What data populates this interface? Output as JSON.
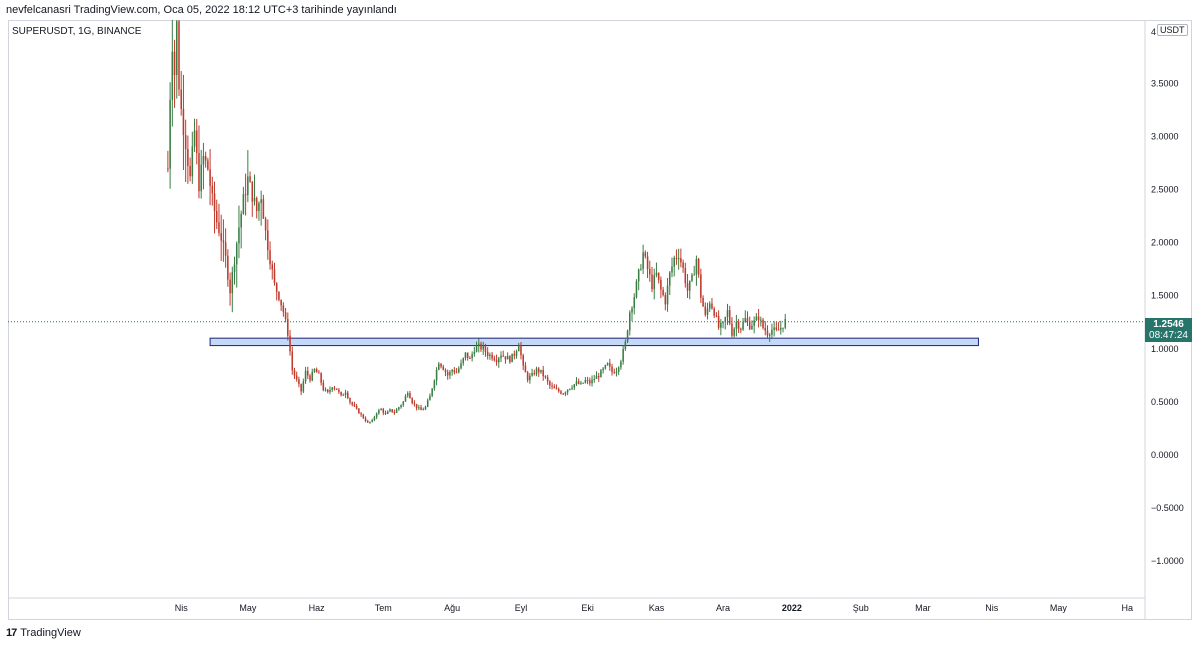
{
  "header": {
    "text": "nevfelcanasri TradingView.com, Oca 05, 2022 18:12 UTC+3 tarihinde yayınlandı"
  },
  "symbol": {
    "text": "SUPERUSDT, 1G, BINANCE"
  },
  "currency": "USDT",
  "last_price": {
    "price": "1.2546",
    "countdown": "08:47:24"
  },
  "footer": {
    "logo": "17",
    "brand": "TradingView"
  },
  "colors": {
    "up": "#26a69a",
    "down": "#ef5350",
    "candle_body_up": "#3a7d44",
    "candle_body_down": "#c0392b",
    "zone_fill": "#c5d8f7",
    "zone_stroke": "#1a237e",
    "last_price_bg": "#26746a"
  },
  "chart_data": {
    "type": "candlestick",
    "title": "",
    "xlabel": "",
    "ylabel": "",
    "ylim": [
      -1.35,
      4.1
    ],
    "y_ticks": [
      "3.5000",
      "3.0000",
      "2.5000",
      "2.0000",
      "1.5000",
      "1.0000",
      "0.5000",
      "0.0000",
      "−0.5000",
      "−1.0000"
    ],
    "y_tick_values": [
      3.5,
      3.0,
      2.5,
      2.0,
      1.5,
      1.0,
      0.5,
      0.0,
      -0.5,
      -1.0
    ],
    "y_top_tick": "4",
    "x_ticks": [
      "Nis",
      "May",
      "Haz",
      "Tem",
      "Ağu",
      "Eyl",
      "Eki",
      "Kas",
      "Ara",
      "2022",
      "Şub",
      "Mar",
      "Nis",
      "May",
      "Ha"
    ],
    "x_tick_days": [
      0,
      30,
      61,
      91,
      122,
      153,
      183,
      214,
      244,
      275,
      306,
      334,
      365,
      395,
      426
    ],
    "x_range_days": [
      -78,
      434
    ],
    "grid": false,
    "legend": "none",
    "last_price": 1.2546,
    "support_zone": {
      "y_low": 1.03,
      "y_high": 1.1,
      "x_start_day": 13,
      "x_end_day": 359
    },
    "close_path": [
      [
        -6,
        2.7
      ],
      [
        -5,
        3.4
      ],
      [
        -4,
        3.9
      ],
      [
        -3,
        3.6
      ],
      [
        -2,
        4.05
      ],
      [
        -1,
        3.5
      ],
      [
        0,
        3.25
      ],
      [
        2,
        2.95
      ],
      [
        4,
        2.6
      ],
      [
        6,
        3.05
      ],
      [
        8,
        2.55
      ],
      [
        10,
        2.8
      ],
      [
        12,
        2.7
      ],
      [
        14,
        2.4
      ],
      [
        16,
        2.2
      ],
      [
        18,
        2.05
      ],
      [
        20,
        1.85
      ],
      [
        22,
        1.55
      ],
      [
        24,
        1.85
      ],
      [
        26,
        2.15
      ],
      [
        28,
        2.4
      ],
      [
        30,
        2.6
      ],
      [
        32,
        2.45
      ],
      [
        34,
        2.3
      ],
      [
        36,
        2.45
      ],
      [
        38,
        2.1
      ],
      [
        40,
        1.85
      ],
      [
        42,
        1.6
      ],
      [
        44,
        1.5
      ],
      [
        46,
        1.35
      ],
      [
        48,
        1.15
      ],
      [
        50,
        0.8
      ],
      [
        52,
        0.7
      ],
      [
        54,
        0.6
      ],
      [
        56,
        0.78
      ],
      [
        58,
        0.72
      ],
      [
        60,
        0.8
      ],
      [
        62,
        0.75
      ],
      [
        64,
        0.62
      ],
      [
        66,
        0.58
      ],
      [
        68,
        0.65
      ],
      [
        70,
        0.62
      ],
      [
        72,
        0.55
      ],
      [
        74,
        0.6
      ],
      [
        76,
        0.5
      ],
      [
        78,
        0.45
      ],
      [
        80,
        0.4
      ],
      [
        82,
        0.35
      ],
      [
        84,
        0.3
      ],
      [
        86,
        0.32
      ],
      [
        88,
        0.4
      ],
      [
        90,
        0.43
      ],
      [
        92,
        0.38
      ],
      [
        94,
        0.42
      ],
      [
        96,
        0.4
      ],
      [
        98,
        0.45
      ],
      [
        100,
        0.5
      ],
      [
        102,
        0.6
      ],
      [
        104,
        0.5
      ],
      [
        106,
        0.45
      ],
      [
        108,
        0.42
      ],
      [
        110,
        0.45
      ],
      [
        112,
        0.55
      ],
      [
        114,
        0.72
      ],
      [
        116,
        0.88
      ],
      [
        118,
        0.82
      ],
      [
        120,
        0.75
      ],
      [
        122,
        0.8
      ],
      [
        124,
        0.78
      ],
      [
        126,
        0.85
      ],
      [
        128,
        0.95
      ],
      [
        130,
        0.9
      ],
      [
        132,
        1.0
      ],
      [
        134,
        1.02
      ],
      [
        136,
        1.0
      ],
      [
        138,
        0.95
      ],
      [
        140,
        0.93
      ],
      [
        142,
        0.9
      ],
      [
        144,
        0.95
      ],
      [
        146,
        0.92
      ],
      [
        148,
        0.9
      ],
      [
        150,
        0.95
      ],
      [
        152,
        1.05
      ],
      [
        154,
        0.82
      ],
      [
        156,
        0.72
      ],
      [
        158,
        0.75
      ],
      [
        160,
        0.8
      ],
      [
        162,
        0.78
      ],
      [
        164,
        0.72
      ],
      [
        166,
        0.65
      ],
      [
        168,
        0.62
      ],
      [
        170,
        0.6
      ],
      [
        172,
        0.58
      ],
      [
        174,
        0.62
      ],
      [
        176,
        0.65
      ],
      [
        178,
        0.68
      ],
      [
        180,
        0.66
      ],
      [
        182,
        0.7
      ],
      [
        184,
        0.68
      ],
      [
        186,
        0.72
      ],
      [
        188,
        0.75
      ],
      [
        190,
        0.8
      ],
      [
        192,
        0.85
      ],
      [
        194,
        0.78
      ],
      [
        196,
        0.8
      ],
      [
        198,
        0.9
      ],
      [
        200,
        1.05
      ],
      [
        202,
        1.35
      ],
      [
        204,
        1.5
      ],
      [
        206,
        1.7
      ],
      [
        208,
        1.9
      ],
      [
        210,
        1.75
      ],
      [
        212,
        1.6
      ],
      [
        214,
        1.7
      ],
      [
        216,
        1.55
      ],
      [
        218,
        1.45
      ],
      [
        220,
        1.7
      ],
      [
        222,
        1.85
      ],
      [
        224,
        1.9
      ],
      [
        226,
        1.75
      ],
      [
        228,
        1.55
      ],
      [
        230,
        1.65
      ],
      [
        232,
        1.85
      ],
      [
        234,
        1.5
      ],
      [
        236,
        1.3
      ],
      [
        238,
        1.45
      ],
      [
        240,
        1.35
      ],
      [
        242,
        1.2
      ],
      [
        244,
        1.22
      ],
      [
        246,
        1.35
      ],
      [
        248,
        1.15
      ],
      [
        250,
        1.25
      ],
      [
        252,
        1.2
      ],
      [
        254,
        1.28
      ],
      [
        256,
        1.22
      ],
      [
        258,
        1.25
      ],
      [
        260,
        1.3
      ],
      [
        262,
        1.2
      ],
      [
        264,
        1.15
      ],
      [
        266,
        1.18
      ],
      [
        268,
        1.16
      ],
      [
        270,
        1.2
      ],
      [
        272,
        1.26
      ]
    ]
  }
}
